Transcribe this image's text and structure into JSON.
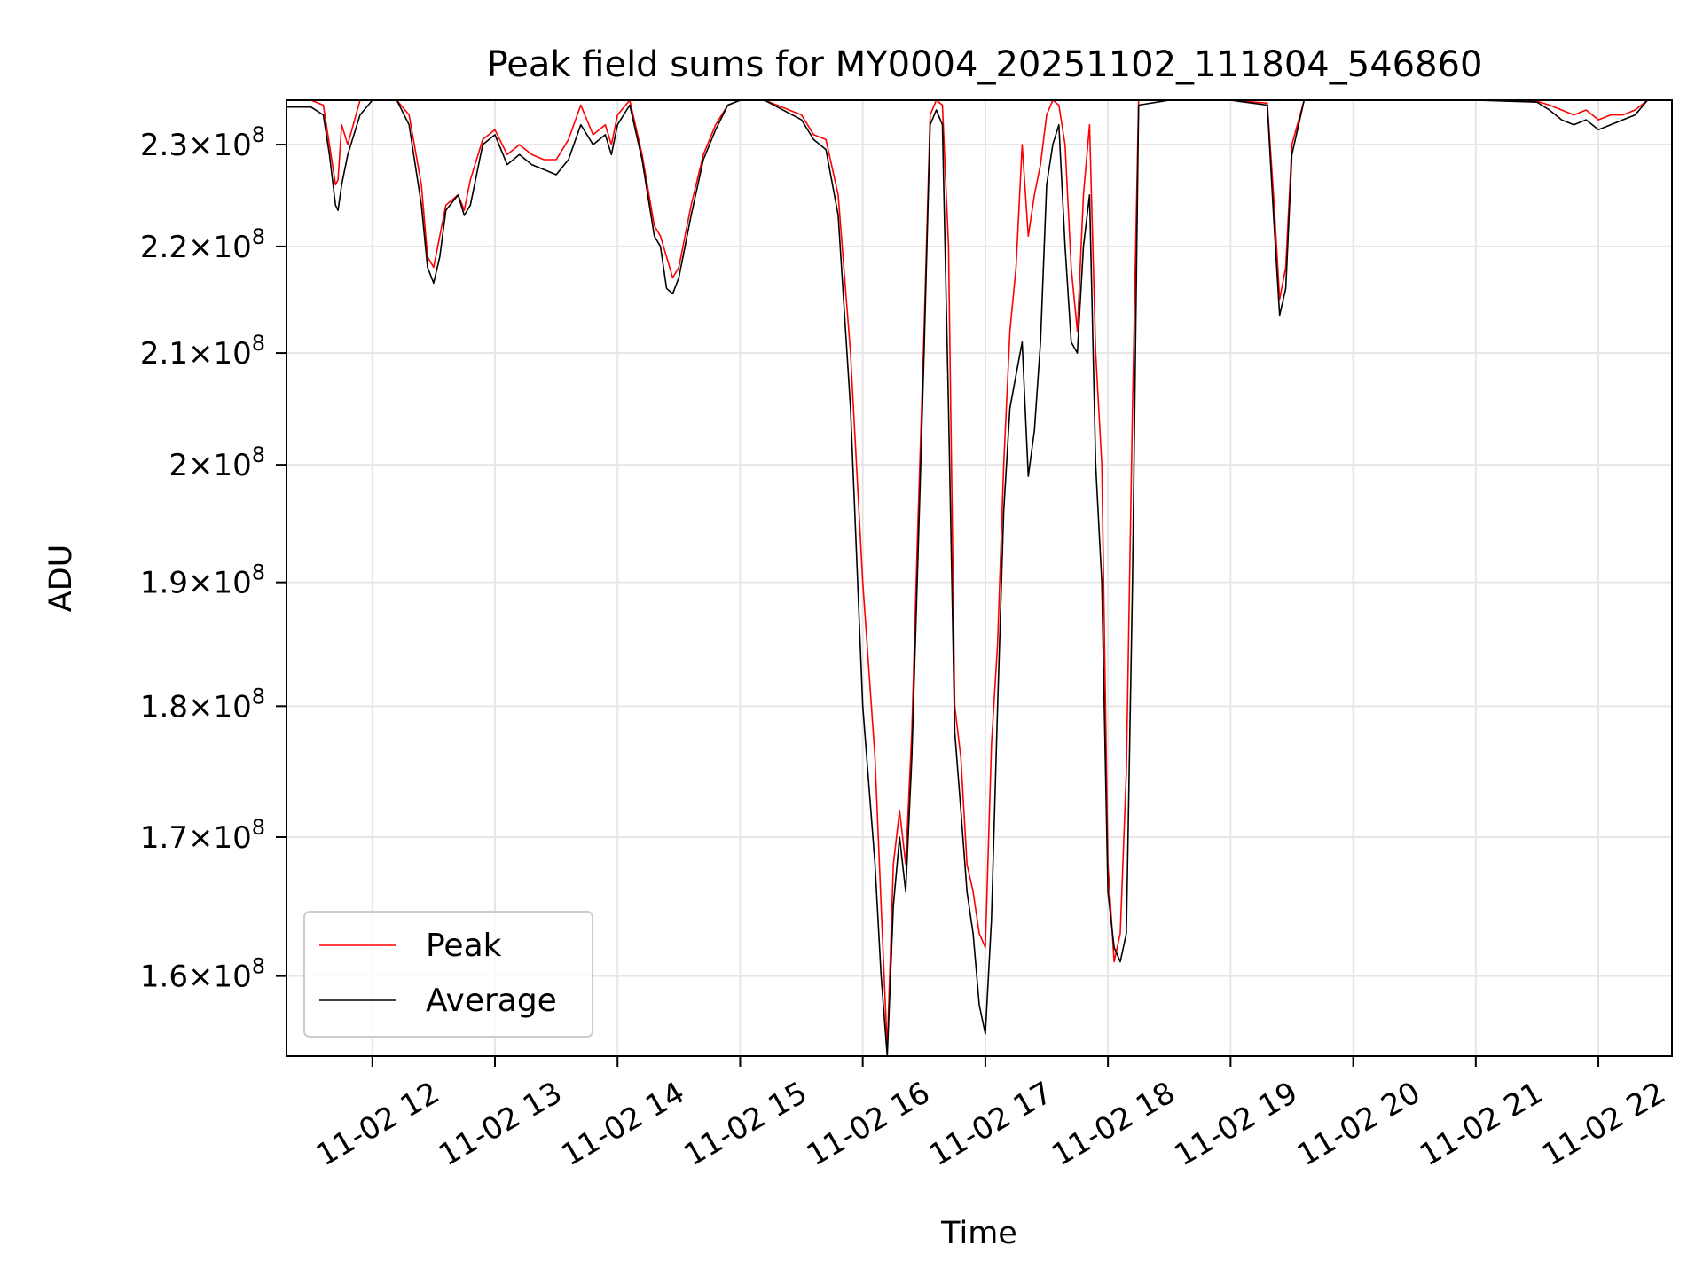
{
  "chart_data": {
    "type": "line",
    "title": "Peak field sums for MY0004_20251102_111804_546860",
    "xlabel": "Time",
    "ylabel": "ADU",
    "yscale": "log",
    "xlim_hours": [
      11.3,
      22.6
    ],
    "ylim": [
      154500000,
      234500000
    ],
    "grid": true,
    "legend_position": "lower-left",
    "x_ticks": [
      {
        "hour": 12,
        "label": "11-02 12"
      },
      {
        "hour": 13,
        "label": "11-02 13"
      },
      {
        "hour": 14,
        "label": "11-02 14"
      },
      {
        "hour": 15,
        "label": "11-02 15"
      },
      {
        "hour": 16,
        "label": "11-02 16"
      },
      {
        "hour": 17,
        "label": "11-02 17"
      },
      {
        "hour": 18,
        "label": "11-02 18"
      },
      {
        "hour": 19,
        "label": "11-02 19"
      },
      {
        "hour": 20,
        "label": "11-02 20"
      },
      {
        "hour": 21,
        "label": "11-02 21"
      },
      {
        "hour": 22,
        "label": "11-02 22"
      }
    ],
    "y_ticks": [
      {
        "value": 160000000,
        "mantissa": "1.6",
        "exponent": "8"
      },
      {
        "value": 170000000,
        "mantissa": "1.7",
        "exponent": "8"
      },
      {
        "value": 180000000,
        "mantissa": "1.8",
        "exponent": "8"
      },
      {
        "value": 190000000,
        "mantissa": "1.9",
        "exponent": "8"
      },
      {
        "value": 200000000,
        "mantissa": "2",
        "exponent": "8"
      },
      {
        "value": 210000000,
        "mantissa": "2.1",
        "exponent": "8"
      },
      {
        "value": 220000000,
        "mantissa": "2.2",
        "exponent": "8"
      },
      {
        "value": 230000000,
        "mantissa": "2.3",
        "exponent": "8"
      }
    ],
    "series": [
      {
        "name": "Peak",
        "color": "#ff0000",
        "description_points": "hour vs ADU, max of field sums",
        "x": [
          11.3,
          11.5,
          11.6,
          11.65,
          11.7,
          11.72,
          11.75,
          11.8,
          11.9,
          12.0,
          12.2,
          12.3,
          12.4,
          12.45,
          12.5,
          12.55,
          12.6,
          12.7,
          12.75,
          12.8,
          12.9,
          13.0,
          13.1,
          13.2,
          13.3,
          13.4,
          13.5,
          13.6,
          13.7,
          13.8,
          13.9,
          13.95,
          14.0,
          14.1,
          14.2,
          14.3,
          14.35,
          14.4,
          14.45,
          14.5,
          14.6,
          14.7,
          14.8,
          14.9,
          15.0,
          15.2,
          15.5,
          15.6,
          15.7,
          15.8,
          15.9,
          16.0,
          16.1,
          16.15,
          16.2,
          16.25,
          16.3,
          16.35,
          16.4,
          16.45,
          16.5,
          16.55,
          16.6,
          16.65,
          16.7,
          16.75,
          16.8,
          16.85,
          16.9,
          16.95,
          17.0,
          17.05,
          17.1,
          17.15,
          17.2,
          17.25,
          17.3,
          17.35,
          17.4,
          17.45,
          17.5,
          17.55,
          17.6,
          17.65,
          17.7,
          17.75,
          17.8,
          17.85,
          17.9,
          17.95,
          18.0,
          18.05,
          18.1,
          18.15,
          18.2,
          18.25,
          18.5,
          19.0,
          19.3,
          19.35,
          19.4,
          19.45,
          19.5,
          19.6,
          20.0,
          21.0,
          21.5,
          21.6,
          21.7,
          21.8,
          21.9,
          22.0,
          22.1,
          22.2,
          22.3,
          22.4
        ],
        "y": [
          234500000,
          234500000,
          234000000,
          230000000,
          226000000,
          226500000,
          232000000,
          230000000,
          234500000,
          234500000,
          234500000,
          233000000,
          226000000,
          219000000,
          218000000,
          221000000,
          224000000,
          225000000,
          223500000,
          226500000,
          230500000,
          231500000,
          229000000,
          230000000,
          229000000,
          228500000,
          228500000,
          230500000,
          234000000,
          231000000,
          232000000,
          230000000,
          233000000,
          234500000,
          229000000,
          222000000,
          221000000,
          219000000,
          217000000,
          218000000,
          224000000,
          229000000,
          232000000,
          234000000,
          234500000,
          234500000,
          233000000,
          231000000,
          230500000,
          225000000,
          210000000,
          190000000,
          176000000,
          165000000,
          155000000,
          168000000,
          172000000,
          168000000,
          178000000,
          195000000,
          212000000,
          233000000,
          234500000,
          234000000,
          220000000,
          180000000,
          176000000,
          168000000,
          166000000,
          163000000,
          162000000,
          177000000,
          185000000,
          200000000,
          212000000,
          218000000,
          230000000,
          221000000,
          225000000,
          228000000,
          233000000,
          234500000,
          234000000,
          230000000,
          218000000,
          212000000,
          225000000,
          232000000,
          210000000,
          200000000,
          168000000,
          161000000,
          163000000,
          175000000,
          205000000,
          234500000,
          234500000,
          234500000,
          234200000,
          225000000,
          215000000,
          218000000,
          230000000,
          234500000,
          234500000,
          234500000,
          234400000,
          234000000,
          233500000,
          233000000,
          233500000,
          232500000,
          233000000,
          233000000,
          233500000,
          234500000
        ]
      },
      {
        "name": "Average",
        "color": "#000000",
        "x": [
          11.3,
          11.5,
          11.6,
          11.65,
          11.7,
          11.72,
          11.75,
          11.8,
          11.9,
          12.0,
          12.2,
          12.3,
          12.4,
          12.45,
          12.5,
          12.55,
          12.6,
          12.7,
          12.75,
          12.8,
          12.9,
          13.0,
          13.1,
          13.2,
          13.3,
          13.4,
          13.5,
          13.6,
          13.7,
          13.8,
          13.9,
          13.95,
          14.0,
          14.1,
          14.2,
          14.3,
          14.35,
          14.4,
          14.45,
          14.5,
          14.6,
          14.7,
          14.8,
          14.9,
          15.0,
          15.2,
          15.5,
          15.6,
          15.7,
          15.8,
          15.9,
          16.0,
          16.1,
          16.15,
          16.2,
          16.25,
          16.3,
          16.35,
          16.4,
          16.45,
          16.5,
          16.55,
          16.6,
          16.65,
          16.7,
          16.75,
          16.8,
          16.85,
          16.9,
          16.95,
          17.0,
          17.05,
          17.1,
          17.15,
          17.2,
          17.25,
          17.3,
          17.35,
          17.4,
          17.45,
          17.5,
          17.55,
          17.6,
          17.65,
          17.7,
          17.75,
          17.8,
          17.85,
          17.9,
          17.95,
          18.0,
          18.05,
          18.1,
          18.15,
          18.2,
          18.25,
          18.5,
          19.0,
          19.3,
          19.35,
          19.4,
          19.45,
          19.5,
          19.6,
          20.0,
          21.0,
          21.5,
          21.6,
          21.7,
          21.8,
          21.9,
          22.0,
          22.1,
          22.2,
          22.3,
          22.4
        ],
        "y": [
          233800000,
          233800000,
          233000000,
          229000000,
          224000000,
          223500000,
          226000000,
          229000000,
          233000000,
          234500000,
          234500000,
          232000000,
          224000000,
          218000000,
          216500000,
          219000000,
          223500000,
          225000000,
          223000000,
          224000000,
          230000000,
          231000000,
          228000000,
          229000000,
          228000000,
          227500000,
          227000000,
          228500000,
          232000000,
          230000000,
          231000000,
          229000000,
          232000000,
          234000000,
          228500000,
          221000000,
          220000000,
          216000000,
          215500000,
          217000000,
          223000000,
          228500000,
          231500000,
          234000000,
          234500000,
          234500000,
          232500000,
          230500000,
          229500000,
          223000000,
          205000000,
          180000000,
          168000000,
          160000000,
          154500000,
          165000000,
          170000000,
          166000000,
          176000000,
          192000000,
          210000000,
          232000000,
          233500000,
          232000000,
          205000000,
          178000000,
          172000000,
          166000000,
          163000000,
          158000000,
          156000000,
          164000000,
          180000000,
          196000000,
          205000000,
          208000000,
          211000000,
          199000000,
          203000000,
          211000000,
          226000000,
          230000000,
          232000000,
          220000000,
          211000000,
          210000000,
          220000000,
          225000000,
          200000000,
          190000000,
          166000000,
          162000000,
          161000000,
          163000000,
          190000000,
          234000000,
          234500000,
          234500000,
          234000000,
          223000000,
          213500000,
          216000000,
          229000000,
          234500000,
          234500000,
          234500000,
          234300000,
          233500000,
          232500000,
          232000000,
          232500000,
          231500000,
          232000000,
          232500000,
          233000000,
          234500000
        ]
      }
    ]
  }
}
